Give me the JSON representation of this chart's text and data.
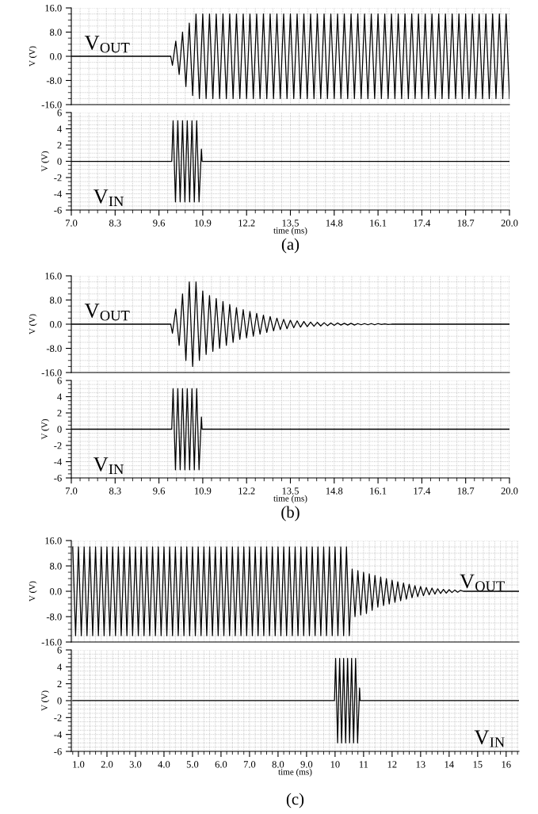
{
  "chart_data": [
    {
      "type": "line",
      "ylabel": "V (V)",
      "xlim": [
        7.0,
        20.0
      ],
      "xticks": [
        7,
        8.3,
        9.6,
        10.9,
        12.2,
        13.5,
        14.8,
        16.1,
        17.4,
        18.7,
        20
      ],
      "ylim": [
        -16,
        16
      ],
      "yticks": [
        {
          "value": -16,
          "label": "-16.0"
        },
        {
          "value": -8,
          "label": "-8.0"
        },
        {
          "value": 0,
          "label": "0.0"
        },
        {
          "value": 8,
          "label": "8.0"
        },
        {
          "value": 16,
          "label": "16.0"
        }
      ],
      "tick_labels": "y",
      "grid": true,
      "series": [
        {
          "name": "V$_{OUT}$",
          "color": "#000000",
          "x": [
            7.0,
            9.95,
            10.0,
            10.1,
            10.2,
            10.3,
            10.4,
            10.5,
            10.6,
            10.7,
            10.8,
            10.9,
            11.0,
            11.1,
            11.2,
            11.3,
            11.4,
            11.5,
            11.6,
            11.7,
            11.8,
            11.9,
            12.0,
            12.1,
            12.2,
            12.3,
            12.4,
            12.5,
            12.6,
            12.7,
            12.8,
            12.9,
            13.0,
            13.1,
            13.2,
            13.3,
            13.4,
            13.5,
            13.6,
            13.7,
            13.8,
            13.9,
            14.0,
            14.1,
            14.2,
            14.3,
            14.4,
            14.5,
            14.6,
            14.7,
            14.8,
            14.9,
            15.0,
            15.1,
            15.2,
            15.3,
            15.4,
            15.5,
            15.6,
            15.7,
            15.8,
            15.9,
            16.0,
            16.1,
            16.2,
            16.3,
            16.4,
            16.5,
            16.6,
            16.7,
            16.8,
            16.9,
            17.0,
            17.1,
            17.2,
            17.3,
            17.4,
            17.5,
            17.6,
            17.7,
            17.8,
            17.9,
            18.0,
            18.1,
            18.2,
            18.3,
            18.4,
            18.5,
            18.6,
            18.7,
            18.8,
            18.9,
            19.0,
            19.1,
            19.2,
            19.3,
            19.4,
            19.5,
            19.6,
            19.7,
            19.8,
            19.9,
            20.0
          ],
          "values": [
            0,
            0,
            -3,
            5,
            -6,
            8,
            -10,
            11,
            -13,
            14,
            -14,
            14,
            -14,
            14,
            -14,
            14,
            -14,
            14,
            -14,
            14,
            -14,
            14,
            -14,
            14,
            -14,
            14,
            -14,
            14,
            -14,
            14,
            -14,
            14,
            -14,
            14,
            -14,
            14,
            -14,
            14,
            -14,
            14,
            -14,
            14,
            -14,
            14,
            -14,
            14,
            -14,
            14,
            -14,
            14,
            -14,
            14,
            -14,
            14,
            -14,
            14,
            -14,
            14,
            -14,
            14,
            -14,
            14,
            -14,
            14,
            -14,
            14,
            -14,
            14,
            -14,
            14,
            -14,
            14,
            -14,
            14,
            -14,
            14,
            -14,
            14,
            -14,
            14,
            -14,
            14,
            -14,
            14,
            -14,
            14,
            -14,
            14,
            -14,
            14,
            -14,
            14,
            -14,
            14,
            -14,
            14,
            -14,
            14,
            -14,
            14,
            -14,
            14,
            -14
          ]
        }
      ]
    },
    {
      "type": "line",
      "ylabel": "V (V)",
      "xlabel": "time (ms)",
      "xlim": [
        7.0,
        20.0
      ],
      "xticks": [
        {
          "value": 7,
          "label": "7.0"
        },
        8.3,
        9.6,
        10.9,
        12.2,
        13.5,
        14.8,
        16.1,
        17.4,
        18.7,
        {
          "value": 20,
          "label": "20.0"
        }
      ],
      "ylim": [
        -6,
        6
      ],
      "yticks": [
        -6,
        -4,
        -2,
        0,
        2,
        4,
        6
      ],
      "grid": true,
      "annotations": [
        "(a)"
      ],
      "series": [
        {
          "name": "V$_{IN}$",
          "color": "#000000",
          "x": [
            7.0,
            9.98,
            10.02,
            10.09,
            10.16,
            10.23,
            10.3,
            10.37,
            10.44,
            10.51,
            10.58,
            10.65,
            10.72,
            10.79,
            10.86,
            10.88,
            20.0
          ],
          "values": [
            0,
            0,
            5,
            -5,
            5,
            -5,
            5,
            -5,
            5,
            -5,
            5,
            -5,
            5,
            -5,
            1.5,
            0,
            0
          ]
        }
      ]
    },
    {
      "type": "line",
      "ylabel": "V (V)",
      "xlim": [
        7.0,
        20.0
      ],
      "xticks": [
        7,
        8.3,
        9.6,
        10.9,
        12.2,
        13.5,
        14.8,
        16.1,
        17.4,
        18.7,
        20
      ],
      "ylim": [
        -16,
        16
      ],
      "yticks": [
        {
          "value": -16,
          "label": "-16.0"
        },
        {
          "value": -8,
          "label": "-8.0"
        },
        {
          "value": 0,
          "label": "0.0"
        },
        {
          "value": 8,
          "label": "8.0"
        },
        {
          "value": 16,
          "label": "16.0"
        }
      ],
      "tick_labels": "y",
      "grid": true,
      "series": [
        {
          "name": "V$_{OUT}$",
          "color": "#000000",
          "x": [
            7.0,
            9.95,
            10.0,
            10.1,
            10.2,
            10.3,
            10.4,
            10.5,
            10.6,
            10.7,
            10.8,
            10.9,
            11.0,
            11.1,
            11.2,
            11.3,
            11.4,
            11.5,
            11.6,
            11.7,
            11.8,
            11.9,
            12.0,
            12.1,
            12.2,
            12.3,
            12.4,
            12.5,
            12.6,
            12.7,
            12.8,
            12.9,
            13.0,
            13.1,
            13.2,
            13.3,
            13.4,
            13.5,
            13.6,
            13.7,
            13.8,
            13.9,
            14.0,
            14.1,
            14.2,
            14.3,
            14.4,
            14.5,
            14.6,
            14.7,
            14.8,
            14.9,
            15.0,
            15.1,
            15.2,
            15.3,
            15.4,
            15.5,
            15.6,
            15.7,
            15.8,
            15.9,
            16.0,
            16.1,
            16.2,
            16.3,
            16.4,
            16.5,
            20.0
          ],
          "values": [
            0,
            0,
            -3,
            5,
            -7,
            10,
            -12,
            14,
            -14,
            14,
            -12,
            11,
            -10,
            9.5,
            -9,
            8.5,
            -8,
            7.5,
            -7,
            6.5,
            -6,
            5.5,
            -5,
            4.8,
            -4.5,
            4.2,
            -4,
            3.6,
            -3.3,
            3,
            -2.7,
            2.5,
            -2.2,
            2,
            -1.8,
            1.6,
            -1.5,
            1.3,
            -1.2,
            1.1,
            -1,
            0.9,
            -0.8,
            0.7,
            -0.7,
            0.6,
            -0.6,
            0.5,
            -0.5,
            0.4,
            -0.4,
            0.4,
            -0.3,
            0.3,
            -0.3,
            0.3,
            -0.3,
            0.2,
            -0.2,
            0.2,
            -0.2,
            0.2,
            -0.2,
            0.2,
            -0.1,
            0.1,
            -0.1,
            0,
            0
          ]
        }
      ]
    },
    {
      "type": "line",
      "ylabel": "V (V)",
      "xlabel": "time (ms)",
      "xlim": [
        7.0,
        20.0
      ],
      "xticks": [
        {
          "value": 7,
          "label": "7.0"
        },
        8.3,
        9.6,
        10.9,
        12.2,
        13.5,
        14.8,
        16.1,
        17.4,
        18.7,
        {
          "value": 20,
          "label": "20.0"
        }
      ],
      "ylim": [
        -6,
        6
      ],
      "yticks": [
        -6,
        -4,
        -2,
        0,
        2,
        4,
        6
      ],
      "grid": true,
      "annotations": [
        "(b)"
      ],
      "series": [
        {
          "name": "V$_{IN}$",
          "color": "#000000",
          "x": [
            7.0,
            9.98,
            10.02,
            10.09,
            10.16,
            10.23,
            10.3,
            10.37,
            10.44,
            10.51,
            10.58,
            10.65,
            10.72,
            10.79,
            10.86,
            10.88,
            20.0
          ],
          "values": [
            0,
            0,
            5,
            -5,
            5,
            -5,
            5,
            -5,
            5,
            -5,
            5,
            -5,
            5,
            -5,
            1.5,
            0,
            0
          ]
        }
      ]
    },
    {
      "type": "line",
      "ylabel": "V (V)",
      "xlim": [
        0.75,
        16.45
      ],
      "xticks": [
        1,
        2,
        3,
        4,
        5,
        6,
        7,
        8,
        9,
        10,
        11,
        12,
        13,
        14,
        15,
        16
      ],
      "ylim": [
        -16,
        16
      ],
      "yticks": [
        {
          "value": -16,
          "label": "-16.0"
        },
        {
          "value": -8,
          "label": "-8.0"
        },
        {
          "value": 0,
          "label": "0.0"
        },
        {
          "value": 8,
          "label": "8.0"
        },
        {
          "value": 16,
          "label": "16.0"
        }
      ],
      "tick_labels": "y",
      "grid": true,
      "series": [
        {
          "name": "V$_{OUT}$",
          "color": "#000000",
          "x": [
            0.8,
            0.9,
            1.0,
            1.1,
            1.2,
            1.3,
            1.4,
            1.5,
            1.6,
            1.7,
            1.8,
            1.9,
            2.0,
            2.1,
            2.2,
            2.3,
            2.4,
            2.5,
            2.6,
            2.7,
            2.8,
            2.9,
            3.0,
            3.1,
            3.2,
            3.3,
            3.4,
            3.5,
            3.6,
            3.7,
            3.8,
            3.9,
            4.0,
            4.1,
            4.2,
            4.3,
            4.4,
            4.5,
            4.6,
            4.7,
            4.8,
            4.9,
            5.0,
            5.1,
            5.2,
            5.3,
            5.4,
            5.5,
            5.6,
            5.7,
            5.8,
            5.9,
            6.0,
            6.1,
            6.2,
            6.3,
            6.4,
            6.5,
            6.6,
            6.7,
            6.8,
            6.9,
            7.0,
            7.1,
            7.2,
            7.3,
            7.4,
            7.5,
            7.6,
            7.7,
            7.8,
            7.9,
            8.0,
            8.1,
            8.2,
            8.3,
            8.4,
            8.5,
            8.6,
            8.7,
            8.8,
            8.9,
            9.0,
            9.1,
            9.2,
            9.3,
            9.4,
            9.5,
            9.6,
            9.7,
            9.8,
            9.9,
            10.0,
            10.1,
            10.2,
            10.3,
            10.4,
            10.5,
            10.6,
            10.7,
            10.8,
            10.9,
            11.0,
            11.1,
            11.2,
            11.3,
            11.4,
            11.5,
            11.6,
            11.7,
            11.8,
            11.9,
            12.0,
            12.1,
            12.2,
            12.3,
            12.4,
            12.5,
            12.6,
            12.7,
            12.8,
            12.9,
            13.0,
            13.1,
            13.2,
            13.3,
            13.4,
            13.5,
            13.6,
            13.7,
            13.8,
            13.9,
            14.0,
            14.1,
            14.2,
            14.3,
            14.4,
            14.5,
            16.45
          ],
          "values": [
            14,
            -14,
            14,
            -14,
            14,
            -14,
            14,
            -14,
            14,
            -14,
            14,
            -14,
            14,
            -14,
            14,
            -14,
            14,
            -14,
            14,
            -14,
            14,
            -14,
            14,
            -14,
            14,
            -14,
            14,
            -14,
            14,
            -14,
            14,
            -14,
            14,
            -14,
            14,
            -14,
            14,
            -14,
            14,
            -14,
            14,
            -14,
            14,
            -14,
            14,
            -14,
            14,
            -14,
            14,
            -14,
            14,
            -14,
            14,
            -14,
            14,
            -14,
            14,
            -14,
            14,
            -14,
            14,
            -14,
            14,
            -14,
            14,
            -14,
            14,
            -14,
            14,
            -14,
            14,
            -14,
            14,
            -14,
            14,
            -14,
            14,
            -14,
            14,
            -14,
            14,
            -14,
            14,
            -14,
            14,
            -14,
            14,
            -14,
            14,
            -14,
            14,
            -14,
            14,
            -14,
            14,
            -14,
            14,
            -14,
            7,
            -8,
            6.5,
            -7.5,
            6,
            -7,
            5.5,
            -6,
            5,
            -5,
            4.5,
            -4.5,
            4,
            -4,
            3.5,
            -3.5,
            3,
            -3,
            2.6,
            -2.5,
            2.2,
            -2,
            1.8,
            -1.7,
            1.5,
            -1.4,
            1.2,
            -1.1,
            1,
            -0.9,
            0.8,
            -0.7,
            0.6,
            -0.6,
            0.5,
            -0.4,
            0.4,
            -0.3,
            0.3,
            0,
            0
          ]
        }
      ]
    },
    {
      "type": "line",
      "ylabel": "V (V)",
      "xlabel": "time (ms)",
      "xlim": [
        0.75,
        16.45
      ],
      "xticks": [
        {
          "value": 1,
          "label": "1.0"
        },
        {
          "value": 2,
          "label": "2.0"
        },
        {
          "value": 3,
          "label": "3.0"
        },
        {
          "value": 4,
          "label": "4.0"
        },
        {
          "value": 5,
          "label": "5.0"
        },
        {
          "value": 6,
          "label": "6.0"
        },
        {
          "value": 7,
          "label": "7.0"
        },
        {
          "value": 8,
          "label": "8.0"
        },
        {
          "value": 9,
          "label": "9.0"
        },
        10,
        11,
        12,
        13,
        14,
        15,
        16
      ],
      "ylim": [
        -6,
        6
      ],
      "yticks": [
        -6,
        -4,
        -2,
        0,
        2,
        4,
        6
      ],
      "grid": true,
      "annotations": [
        "(c)"
      ],
      "series": [
        {
          "name": "V$_{IN}$",
          "color": "#000000",
          "x": [
            0.8,
            9.98,
            10.02,
            10.09,
            10.16,
            10.23,
            10.3,
            10.37,
            10.44,
            10.51,
            10.58,
            10.65,
            10.72,
            10.79,
            10.86,
            10.88,
            16.45
          ],
          "values": [
            0,
            0,
            5,
            -5,
            5,
            -5,
            5,
            -5,
            5,
            -5,
            5,
            -5,
            5,
            -5,
            1.5,
            0,
            0
          ]
        }
      ]
    }
  ]
}
